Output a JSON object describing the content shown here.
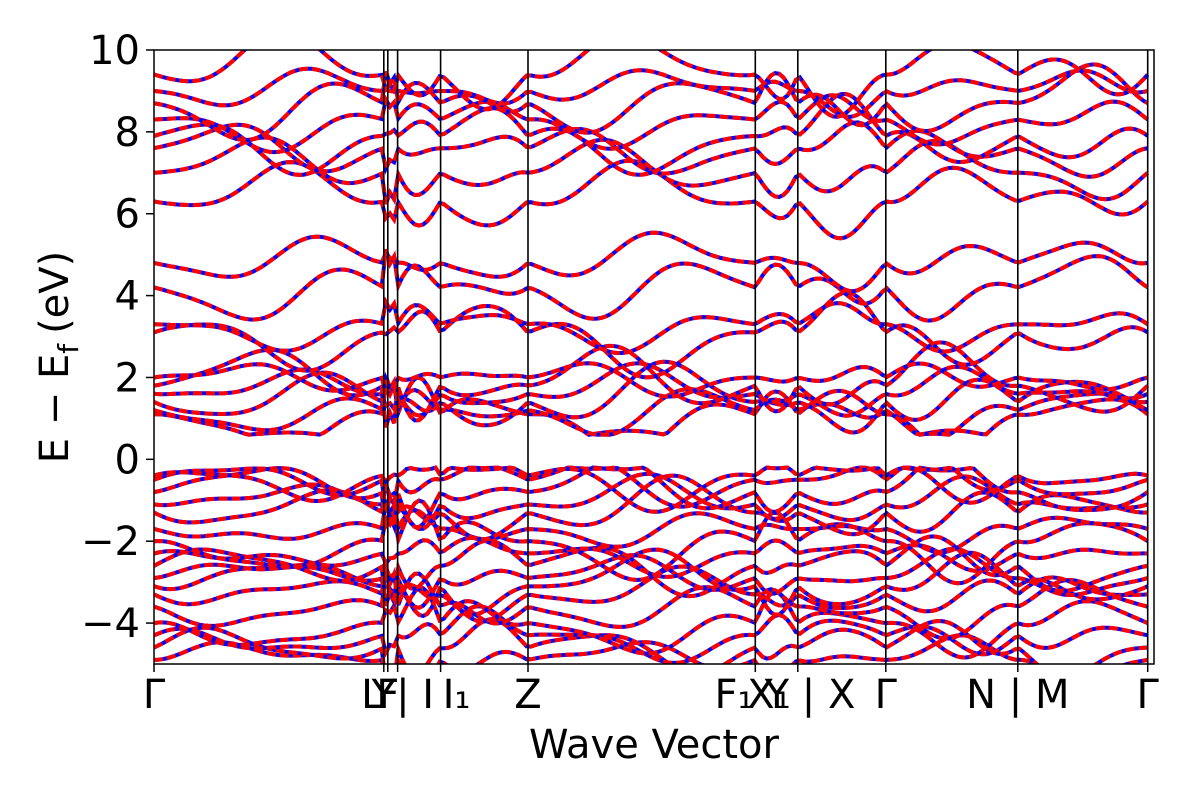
{
  "chart_data": {
    "type": "line",
    "title": "",
    "xlabel": "Wave Vector",
    "ylabel": "E − E",
    "ylabel_subscript": "f",
    "ylabel_unit": "(eV)",
    "ylim": [
      -5,
      10
    ],
    "y_ticks": [
      {
        "value": 10,
        "label": "10"
      },
      {
        "value": 8,
        "label": "8"
      },
      {
        "value": 6,
        "label": "6"
      },
      {
        "value": 4,
        "label": "4"
      },
      {
        "value": 2,
        "label": "2"
      },
      {
        "value": 0,
        "label": "0"
      },
      {
        "value": -2,
        "label": "−2"
      },
      {
        "value": -4,
        "label": "−4"
      }
    ],
    "kpath_segments": [
      {
        "from": "Γ",
        "to": "Y",
        "length": 0.2298
      },
      {
        "from": "Y",
        "to": "F",
        "length": 0.004
      },
      {
        "from": "F",
        "to": "L",
        "length": 0.0098
      },
      {
        "from": "I",
        "to": "I1",
        "length": 0.043
      },
      {
        "from": "I1",
        "to": "Z",
        "length": 0.0874
      },
      {
        "from": "Z",
        "to": "F1",
        "length": 0.2273
      },
      {
        "from": "X1",
        "to": "Y",
        "length": 0.0425
      },
      {
        "from": "Y",
        "to": "Γ",
        "length": 0.088
      },
      {
        "from": "Γ",
        "to": "N",
        "length": 0.132
      },
      {
        "from": "M",
        "to": "Γ",
        "length": 0.1299
      }
    ],
    "high_symmetry_points": [
      {
        "position": 0.0,
        "label": "Γ"
      },
      {
        "position": 0.2298,
        "label": "Y"
      },
      {
        "position": 0.2338,
        "label": "F"
      },
      {
        "position": 0.2436,
        "label": "L | I"
      },
      {
        "position": 0.2866,
        "label": "I1"
      },
      {
        "position": 0.374,
        "label": "Z"
      },
      {
        "position": 0.6013,
        "label": "F1 | X1"
      },
      {
        "position": 0.6438,
        "label": "Y | X"
      },
      {
        "position": 0.7318,
        "label": "Γ"
      },
      {
        "position": 0.8638,
        "label": "N | M"
      },
      {
        "position": 0.9937,
        "label": "Γ"
      }
    ],
    "x_tick_labels": [
      {
        "position": 0.0,
        "label": "Γ"
      },
      {
        "position": 0.2298,
        "label": "Y"
      },
      {
        "position": 0.2338,
        "label": "F"
      },
      {
        "position": 0.2436,
        "label": "L | I"
      },
      {
        "position": 0.3025,
        "label": "I₁"
      },
      {
        "position": 0.374,
        "label": "Z"
      },
      {
        "position": 0.58,
        "label": "F₁"
      },
      {
        "position": 0.615,
        "label": "X₁"
      },
      {
        "position": 0.656,
        "label": "Y | X"
      },
      {
        "position": 0.7318,
        "label": "Γ"
      },
      {
        "position": 0.8638,
        "label": "N | M"
      },
      {
        "position": 0.9937,
        "label": "Γ"
      }
    ],
    "series": [
      {
        "color": "#0000ff",
        "style": "solid"
      },
      {
        "color": "#ff0000",
        "style": "dashed"
      }
    ],
    "bands_at_gamma": [
      -4.9,
      -4.6,
      -4.3,
      -4.0,
      -3.6,
      -3.3,
      -3.1,
      -2.9,
      -2.6,
      -2.3,
      -2.0,
      -1.7,
      -1.3,
      -1.1,
      -0.8,
      -0.5,
      -0.4,
      1.1,
      1.2,
      1.4,
      1.6,
      1.8,
      2.0,
      3.1,
      3.3,
      4.2,
      4.8,
      6.3,
      7.0,
      7.6,
      7.9,
      8.3,
      8.7,
      9.0,
      9.4
    ],
    "grid": false,
    "legend": "none"
  }
}
